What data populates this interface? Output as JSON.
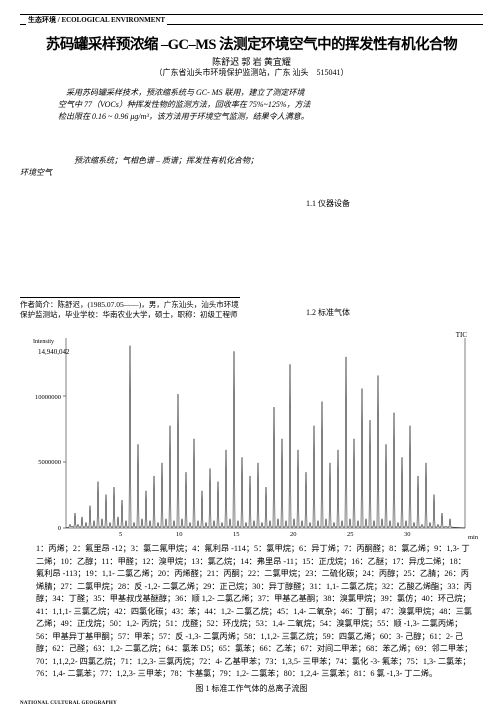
{
  "header": {
    "section": "生态环境 / ECOLOGICAL ENVIRONMENT"
  },
  "title": "苏码罐采样预浓缩 –GC–MS 法测定环境空气中的挥发性有机化合物",
  "authors": "陈舒迟  郭 岩  黄宜耀",
  "affiliation": "（广东省汕头市环境保护监测站，广东  汕头　515041）",
  "abstract": "采用苏码罐采样技术，预浓缩系统与 GC- MS 联用，建立了测定环境空气中 77（VOCs）种挥发性物的监测方法，回收率在 75%~125%，方法检出限在 0.16 ~ 0.96 μg/m³，该方法用于环境空气监测，结果令人满意。",
  "keywords": "预浓缩系统；气相色谱 – 质谱；挥发性有机化合物；",
  "keywords2": "环境空气",
  "section11": "1.1 仪器设备",
  "section12": "1.2 标准气体",
  "authorBio": "作者简介：陈舒迟，(1985.07.05——)，男，广东汕头，汕头市环境保护监测站，毕业学校：华南农业大学，硕士，职称：初级工程师",
  "chart": {
    "type": "line",
    "tic_label": "TIC",
    "intensity_label": "Intensity",
    "y_max_display": "14,940,042",
    "y_labels": [
      "10000000",
      "5000000",
      "0"
    ],
    "y_positions": [
      397,
      462,
      528
    ],
    "x_labels": [
      "5",
      "10",
      "15",
      "20",
      "25",
      "30"
    ],
    "x_min_label": "min",
    "bg": "#ffffff",
    "line_color": "#000000",
    "peaks": [
      [
        40,
        0.02
      ],
      [
        42,
        0.01
      ],
      [
        45,
        0.08
      ],
      [
        48,
        0.02
      ],
      [
        52,
        0.06
      ],
      [
        56,
        0.03
      ],
      [
        60,
        0.12
      ],
      [
        64,
        0.04
      ],
      [
        68,
        0.25
      ],
      [
        72,
        0.05
      ],
      [
        76,
        0.18
      ],
      [
        80,
        0.03
      ],
      [
        84,
        0.22
      ],
      [
        88,
        0.06
      ],
      [
        92,
        0.15
      ],
      [
        96,
        0.04
      ],
      [
        100,
        0.98
      ],
      [
        104,
        0.03
      ],
      [
        108,
        0.45
      ],
      [
        112,
        0.05
      ],
      [
        116,
        0.2
      ],
      [
        120,
        0.04
      ],
      [
        124,
        0.28
      ],
      [
        128,
        0.03
      ],
      [
        132,
        0.35
      ],
      [
        136,
        0.05
      ],
      [
        140,
        0.55
      ],
      [
        144,
        0.04
      ],
      [
        148,
        0.72
      ],
      [
        152,
        0.05
      ],
      [
        156,
        0.3
      ],
      [
        160,
        0.03
      ],
      [
        164,
        0.48
      ],
      [
        168,
        0.04
      ],
      [
        172,
        0.2
      ],
      [
        176,
        0.03
      ],
      [
        180,
        0.32
      ],
      [
        184,
        0.04
      ],
      [
        188,
        0.25
      ],
      [
        192,
        0.03
      ],
      [
        196,
        0.42
      ],
      [
        200,
        0.05
      ],
      [
        204,
        0.95
      ],
      [
        208,
        0.04
      ],
      [
        212,
        0.38
      ],
      [
        216,
        0.03
      ],
      [
        220,
        0.28
      ],
      [
        224,
        0.04
      ],
      [
        228,
        0.35
      ],
      [
        232,
        0.03
      ],
      [
        236,
        0.22
      ],
      [
        240,
        0.04
      ],
      [
        244,
        0.65
      ],
      [
        248,
        0.05
      ],
      [
        252,
        0.48
      ],
      [
        256,
        0.04
      ],
      [
        260,
        0.88
      ],
      [
        264,
        0.05
      ],
      [
        268,
        0.42
      ],
      [
        272,
        0.04
      ],
      [
        276,
        0.3
      ],
      [
        280,
        0.03
      ],
      [
        284,
        0.55
      ],
      [
        288,
        0.04
      ],
      [
        292,
        0.68
      ],
      [
        296,
        0.05
      ],
      [
        300,
        0.35
      ],
      [
        304,
        0.03
      ],
      [
        308,
        0.42
      ],
      [
        312,
        0.04
      ],
      [
        316,
        0.92
      ],
      [
        320,
        0.05
      ],
      [
        324,
        0.48
      ],
      [
        328,
        0.04
      ],
      [
        332,
        0.75
      ],
      [
        336,
        0.05
      ],
      [
        340,
        0.58
      ],
      [
        344,
        0.04
      ],
      [
        348,
        0.82
      ],
      [
        352,
        0.05
      ],
      [
        356,
        0.45
      ],
      [
        360,
        0.04
      ],
      [
        364,
        0.62
      ],
      [
        368,
        0.03
      ],
      [
        372,
        0.38
      ],
      [
        376,
        0.04
      ],
      [
        380,
        0.55
      ],
      [
        384,
        0.03
      ],
      [
        388,
        0.28
      ],
      [
        392,
        0.02
      ],
      [
        396,
        0.35
      ],
      [
        400,
        0.03
      ],
      [
        404,
        0.18
      ],
      [
        408,
        0.02
      ],
      [
        412,
        0.08
      ],
      [
        416,
        0.01
      ],
      [
        420,
        0.05
      ]
    ]
  },
  "compounds": "1：丙烯；2：氟里昂 -12；3：氯二氟甲烷；4：氟利昂 -114；5：氯甲烷；6：异丁烯；7：丙酮醛；8：氯乙烯；9：1,3- 丁二烯；10：乙醇；11：甲醛；12：溴甲烷；13：氯乙烷；14：弗里昂 -11；15：正戊烷；16：乙醚；17：异戊二烯；18：氟利昂 -113；19：1,1- 二氯乙烯；20：丙烯醛；21：丙酮；22：二氯甲烷；23：二硫化碳；24：丙醇；25：乙腈；26：丙烯腈；27：二氯甲烷；28：反 -1,2- 二氯乙烯；29：正己烷；30：异丁醇醛；31：1,1- 二氯乙烷；32：乙酸乙烯酯；33：丙醇；34：丁醛；35：甲基叔戊基醚醇；36：顺 1,2- 二氯乙烯；37：甲基乙基酮；38：溴氯甲烷；39：氯仿；40：环己烷；41：1,1,1- 三氯乙烷；42：四氯化碳；43：苯；44：1,2- 二氯乙烷；45：1,4- 二氧杂；46：丁酮；47：溴氯甲烷；48：三氯乙烯；49：正戊烷；50：1,2- 丙烷；51：戊醛；52：环戊烷；53：1,4- 二氧烷；54：溴氯甲烷；55：顺 -1,3- 二氯丙烯；56：甲基异丁基甲酮；57：甲苯；57：反 -1,3- 二氯丙烯；58：1,1,2- 三氯乙烷；59：四氯乙烯；60：3- 己醇；61：2- 己醇；62：己醛；63：1,2- 二氯乙烷；64：氯苯 D5；65：氯苯；66：乙苯；67：对间二甲苯；68：苯乙烯；69：邻二甲苯；70：1,1,2,2- 四氯乙烷；71：1,2,3- 三氯丙烷；72：4- 乙基甲苯；73：1,3,5- 三甲苯；74：氯化 -3- 氟苯；75：1,3- 二氯苯；76：1,4- 二氯苯；77：1,2,3- 三甲苯；78：卞基氯；79：1,2- 二氯苯；80：1,2,4- 三氯苯；81：6 氯 -1,3- 丁二烯。",
  "figCaption": "图 1 标准工作气体的总离子流图",
  "footer": "NATIONAL CULTURAL GEOGRAPHY"
}
